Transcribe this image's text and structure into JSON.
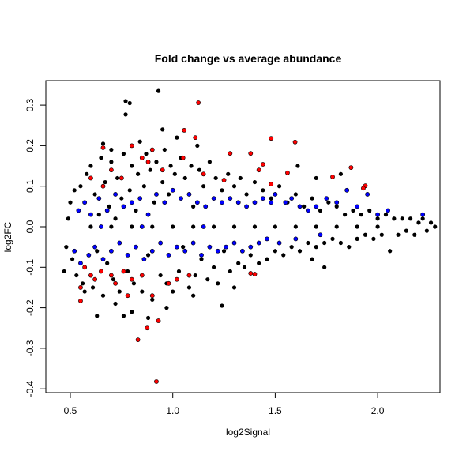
{
  "chart_data": {
    "type": "scatter",
    "title": "Fold change vs average abundance",
    "xlabel": "log2Signal",
    "ylabel": "log2FC",
    "xlim": [
      0.42,
      2.36
    ],
    "ylim": [
      -0.41,
      0.36
    ],
    "xticks": [
      "0.5",
      "1.0",
      "1.5",
      "2.0"
    ],
    "yticks": [
      "-0.4",
      "-0.3",
      "-0.2",
      "-0.1",
      "0.0",
      "0.1",
      "0.2",
      "0.3"
    ],
    "grid": false,
    "colors": {
      "black": "#000000",
      "blue": "#0000ff",
      "red": "#ff0000"
    },
    "series": [
      {
        "color": "#000000",
        "points": [
          [
            0.77,
            0.31
          ],
          [
            0.79,
            0.305
          ],
          [
            0.77,
            0.277
          ],
          [
            0.93,
            0.335
          ],
          [
            0.95,
            0.24
          ],
          [
            1.02,
            0.22
          ],
          [
            0.66,
            0.205
          ],
          [
            0.7,
            0.19
          ],
          [
            0.84,
            0.21
          ],
          [
            1.12,
            0.2
          ],
          [
            0.8,
            -0.21
          ],
          [
            0.76,
            -0.22
          ],
          [
            0.63,
            -0.22
          ],
          [
            0.88,
            -0.225
          ],
          [
            1.24,
            -0.195
          ],
          [
            0.72,
            -0.19
          ],
          [
            0.97,
            -0.2
          ],
          [
            1.1,
            -0.17
          ],
          [
            1.3,
            -0.15
          ],
          [
            0.57,
            -0.16
          ],
          [
            0.47,
            -0.11
          ],
          [
            0.48,
            -0.05
          ],
          [
            0.49,
            0.02
          ],
          [
            0.5,
            0.06
          ],
          [
            0.51,
            -0.08
          ],
          [
            0.52,
            0.09
          ],
          [
            0.53,
            -0.12
          ],
          [
            0.55,
            0.1
          ],
          [
            0.56,
            -0.14
          ],
          [
            0.58,
            0.13
          ],
          [
            0.6,
            0.15
          ],
          [
            0.61,
            -0.15
          ],
          [
            0.62,
            0.08
          ],
          [
            0.63,
            -0.06
          ],
          [
            0.64,
            0.03
          ],
          [
            0.65,
            0.17
          ],
          [
            0.66,
            -0.17
          ],
          [
            0.67,
            0.11
          ],
          [
            0.68,
            -0.09
          ],
          [
            0.69,
            0.05
          ],
          [
            0.7,
            0.16
          ],
          [
            0.71,
            -0.13
          ],
          [
            0.72,
            0.02
          ],
          [
            0.73,
            0.12
          ],
          [
            0.74,
            -0.16
          ],
          [
            0.75,
            0.07
          ],
          [
            0.76,
            0.18
          ],
          [
            0.78,
            -0.11
          ],
          [
            0.79,
            0.09
          ],
          [
            0.8,
            0.15
          ],
          [
            0.81,
            -0.14
          ],
          [
            0.82,
            0.04
          ],
          [
            0.83,
            0.13
          ],
          [
            0.85,
            -0.16
          ],
          [
            0.86,
            0.1
          ],
          [
            0.87,
            0.18
          ],
          [
            0.88,
            -0.07
          ],
          [
            0.89,
            0.14
          ],
          [
            0.9,
            -0.18
          ],
          [
            0.91,
            0.06
          ],
          [
            0.92,
            0.16
          ],
          [
            0.94,
            -0.12
          ],
          [
            0.95,
            0.11
          ],
          [
            0.96,
            0.19
          ],
          [
            0.97,
            -0.14
          ],
          [
            0.98,
            0.08
          ],
          [
            0.99,
            0.15
          ],
          [
            1.0,
            -0.16
          ],
          [
            1.01,
            0.13
          ],
          [
            1.03,
            -0.11
          ],
          [
            1.04,
            0.17
          ],
          [
            1.05,
            -0.05
          ],
          [
            1.06,
            0.12
          ],
          [
            1.08,
            -0.15
          ],
          [
            1.09,
            0.15
          ],
          [
            1.1,
            0.05
          ],
          [
            1.11,
            -0.12
          ],
          [
            1.13,
            0.14
          ],
          [
            1.14,
            -0.08
          ],
          [
            1.15,
            0.1
          ],
          [
            1.17,
            -0.13
          ],
          [
            1.18,
            0.16
          ],
          [
            1.2,
            -0.1
          ],
          [
            1.21,
            0.12
          ],
          [
            1.22,
            -0.14
          ],
          [
            1.24,
            0.09
          ],
          [
            1.25,
            -0.06
          ],
          [
            1.27,
            0.13
          ],
          [
            1.28,
            -0.11
          ],
          [
            1.3,
            0.1
          ],
          [
            1.32,
            -0.09
          ],
          [
            1.33,
            0.12
          ],
          [
            1.35,
            -0.1
          ],
          [
            1.36,
            0.08
          ],
          [
            1.38,
            -0.07
          ],
          [
            1.4,
            0.11
          ],
          [
            1.42,
            -0.09
          ],
          [
            1.44,
            0.09
          ],
          [
            1.46,
            -0.08
          ],
          [
            1.48,
            0.07
          ],
          [
            1.5,
            -0.06
          ],
          [
            1.52,
            0.1
          ],
          [
            1.54,
            -0.07
          ],
          [
            1.56,
            0.06
          ],
          [
            1.58,
            -0.05
          ],
          [
            1.6,
            0.08
          ],
          [
            1.62,
            -0.06
          ],
          [
            1.64,
            0.05
          ],
          [
            1.66,
            -0.04
          ],
          [
            1.68,
            0.07
          ],
          [
            1.7,
            -0.05
          ],
          [
            1.72,
            0.04
          ],
          [
            1.74,
            -0.04
          ],
          [
            1.76,
            0.06
          ],
          [
            1.78,
            -0.03
          ],
          [
            1.8,
            0.05
          ],
          [
            1.82,
            -0.04
          ],
          [
            1.84,
            0.03
          ],
          [
            1.86,
            -0.05
          ],
          [
            1.88,
            0.04
          ],
          [
            1.9,
            -0.03
          ],
          [
            1.92,
            0.03
          ],
          [
            1.94,
            -0.02
          ],
          [
            1.96,
            0.04
          ],
          [
            1.98,
            -0.03
          ],
          [
            2.0,
            0.02
          ],
          [
            2.02,
            -0.02
          ],
          [
            2.04,
            0.03
          ],
          [
            2.06,
            -0.06
          ],
          [
            2.08,
            0.02
          ],
          [
            2.1,
            -0.02
          ],
          [
            2.12,
            0.02
          ],
          [
            2.14,
            -0.01
          ],
          [
            2.16,
            0.02
          ],
          [
            2.18,
            -0.02
          ],
          [
            2.2,
            0.01
          ],
          [
            2.22,
            0.02
          ],
          [
            2.24,
            -0.01
          ],
          [
            2.26,
            0.01
          ],
          [
            2.28,
            0.0
          ],
          [
            1.61,
            0.15
          ],
          [
            1.7,
            0.12
          ],
          [
            1.74,
            -0.1
          ],
          [
            1.82,
            0.13
          ],
          [
            1.68,
            -0.08
          ],
          [
            0.6,
            0.0
          ],
          [
            0.7,
            0.0
          ],
          [
            0.8,
            0.0
          ],
          [
            0.9,
            0.0
          ],
          [
            1.0,
            0.0
          ],
          [
            1.1,
            0.0
          ],
          [
            1.2,
            0.0
          ],
          [
            1.3,
            0.0
          ],
          [
            1.4,
            0.0
          ],
          [
            1.5,
            0.0
          ],
          [
            1.6,
            0.0
          ],
          [
            1.7,
            0.0
          ],
          [
            1.8,
            0.0
          ],
          [
            1.9,
            0.0
          ],
          [
            2.0,
            0.0
          ]
        ]
      },
      {
        "color": "#0000ff",
        "points": [
          [
            0.52,
            -0.06
          ],
          [
            0.54,
            0.04
          ],
          [
            0.55,
            -0.09
          ],
          [
            0.57,
            0.06
          ],
          [
            0.59,
            -0.07
          ],
          [
            0.6,
            0.03
          ],
          [
            0.62,
            -0.05
          ],
          [
            0.64,
            0.07
          ],
          [
            0.66,
            -0.08
          ],
          [
            0.68,
            0.04
          ],
          [
            0.7,
            -0.06
          ],
          [
            0.72,
            0.08
          ],
          [
            0.74,
            -0.04
          ],
          [
            0.76,
            0.05
          ],
          [
            0.78,
            -0.07
          ],
          [
            0.8,
            0.06
          ],
          [
            0.82,
            -0.05
          ],
          [
            0.84,
            0.07
          ],
          [
            0.86,
            -0.08
          ],
          [
            0.88,
            0.03
          ],
          [
            0.9,
            -0.06
          ],
          [
            0.92,
            0.08
          ],
          [
            0.94,
            -0.04
          ],
          [
            0.96,
            0.06
          ],
          [
            0.98,
            -0.07
          ],
          [
            1.0,
            0.09
          ],
          [
            1.02,
            -0.05
          ],
          [
            1.04,
            0.07
          ],
          [
            1.06,
            -0.06
          ],
          [
            1.08,
            0.08
          ],
          [
            1.1,
            -0.04
          ],
          [
            1.12,
            0.06
          ],
          [
            1.14,
            -0.07
          ],
          [
            1.16,
            0.05
          ],
          [
            1.18,
            -0.05
          ],
          [
            1.2,
            0.07
          ],
          [
            1.22,
            -0.06
          ],
          [
            1.24,
            0.06
          ],
          [
            1.26,
            -0.05
          ],
          [
            1.28,
            0.07
          ],
          [
            1.3,
            -0.04
          ],
          [
            1.32,
            0.06
          ],
          [
            1.34,
            -0.06
          ],
          [
            1.36,
            0.05
          ],
          [
            1.38,
            -0.05
          ],
          [
            1.4,
            0.06
          ],
          [
            1.42,
            -0.04
          ],
          [
            1.44,
            0.07
          ],
          [
            1.46,
            -0.03
          ],
          [
            1.48,
            0.06
          ],
          [
            1.5,
            0.08
          ],
          [
            1.52,
            -0.04
          ],
          [
            1.55,
            0.06
          ],
          [
            1.58,
            0.07
          ],
          [
            1.62,
            0.05
          ],
          [
            1.66,
            0.04
          ],
          [
            1.7,
            0.05
          ],
          [
            1.75,
            0.07
          ],
          [
            1.8,
            0.06
          ],
          [
            1.85,
            0.09
          ],
          [
            1.9,
            0.05
          ],
          [
            1.95,
            0.08
          ],
          [
            2.0,
            0.03
          ],
          [
            2.05,
            0.04
          ],
          [
            2.22,
            0.03
          ],
          [
            1.6,
            -0.03
          ],
          [
            1.72,
            -0.02
          ],
          [
            0.65,
            0.0
          ],
          [
            0.85,
            0.0
          ],
          [
            1.15,
            0.0
          ]
        ]
      },
      {
        "color": "#ff0000",
        "points": [
          [
            1.125,
            0.306
          ],
          [
            1.48,
            0.218
          ],
          [
            1.597,
            0.209
          ],
          [
            0.92,
            -0.382
          ],
          [
            0.83,
            -0.279
          ],
          [
            0.875,
            -0.25
          ],
          [
            0.93,
            -0.232
          ],
          [
            1.056,
            0.238
          ],
          [
            1.11,
            0.22
          ],
          [
            0.66,
            0.195
          ],
          [
            1.28,
            0.181
          ],
          [
            1.38,
            0.181
          ],
          [
            1.44,
            0.154
          ],
          [
            1.42,
            0.14
          ],
          [
            1.78,
            0.123
          ],
          [
            1.87,
            0.146
          ],
          [
            1.94,
            0.101
          ],
          [
            1.93,
            0.095
          ],
          [
            1.56,
            0.133
          ],
          [
            1.48,
            0.105
          ],
          [
            1.38,
            -0.115
          ],
          [
            1.4,
            -0.117
          ],
          [
            1.25,
            0.115
          ],
          [
            0.55,
            -0.183
          ],
          [
            0.6,
            -0.12
          ],
          [
            0.62,
            -0.13
          ],
          [
            0.65,
            -0.11
          ],
          [
            0.7,
            -0.12
          ],
          [
            0.72,
            -0.14
          ],
          [
            0.57,
            -0.1
          ],
          [
            0.55,
            -0.15
          ],
          [
            0.76,
            -0.11
          ],
          [
            0.78,
            -0.17
          ],
          [
            0.8,
            -0.13
          ],
          [
            0.85,
            -0.12
          ],
          [
            0.9,
            -0.17
          ],
          [
            0.98,
            -0.14
          ],
          [
            1.02,
            -0.13
          ],
          [
            1.08,
            -0.12
          ],
          [
            0.6,
            0.12
          ],
          [
            0.7,
            0.14
          ],
          [
            0.75,
            0.12
          ],
          [
            0.85,
            0.17
          ],
          [
            0.9,
            0.19
          ],
          [
            0.95,
            0.14
          ],
          [
            1.05,
            0.17
          ],
          [
            1.15,
            0.13
          ],
          [
            0.8,
            0.2
          ],
          [
            0.88,
            0.16
          ],
          [
            0.66,
            0.1
          ]
        ]
      }
    ]
  }
}
